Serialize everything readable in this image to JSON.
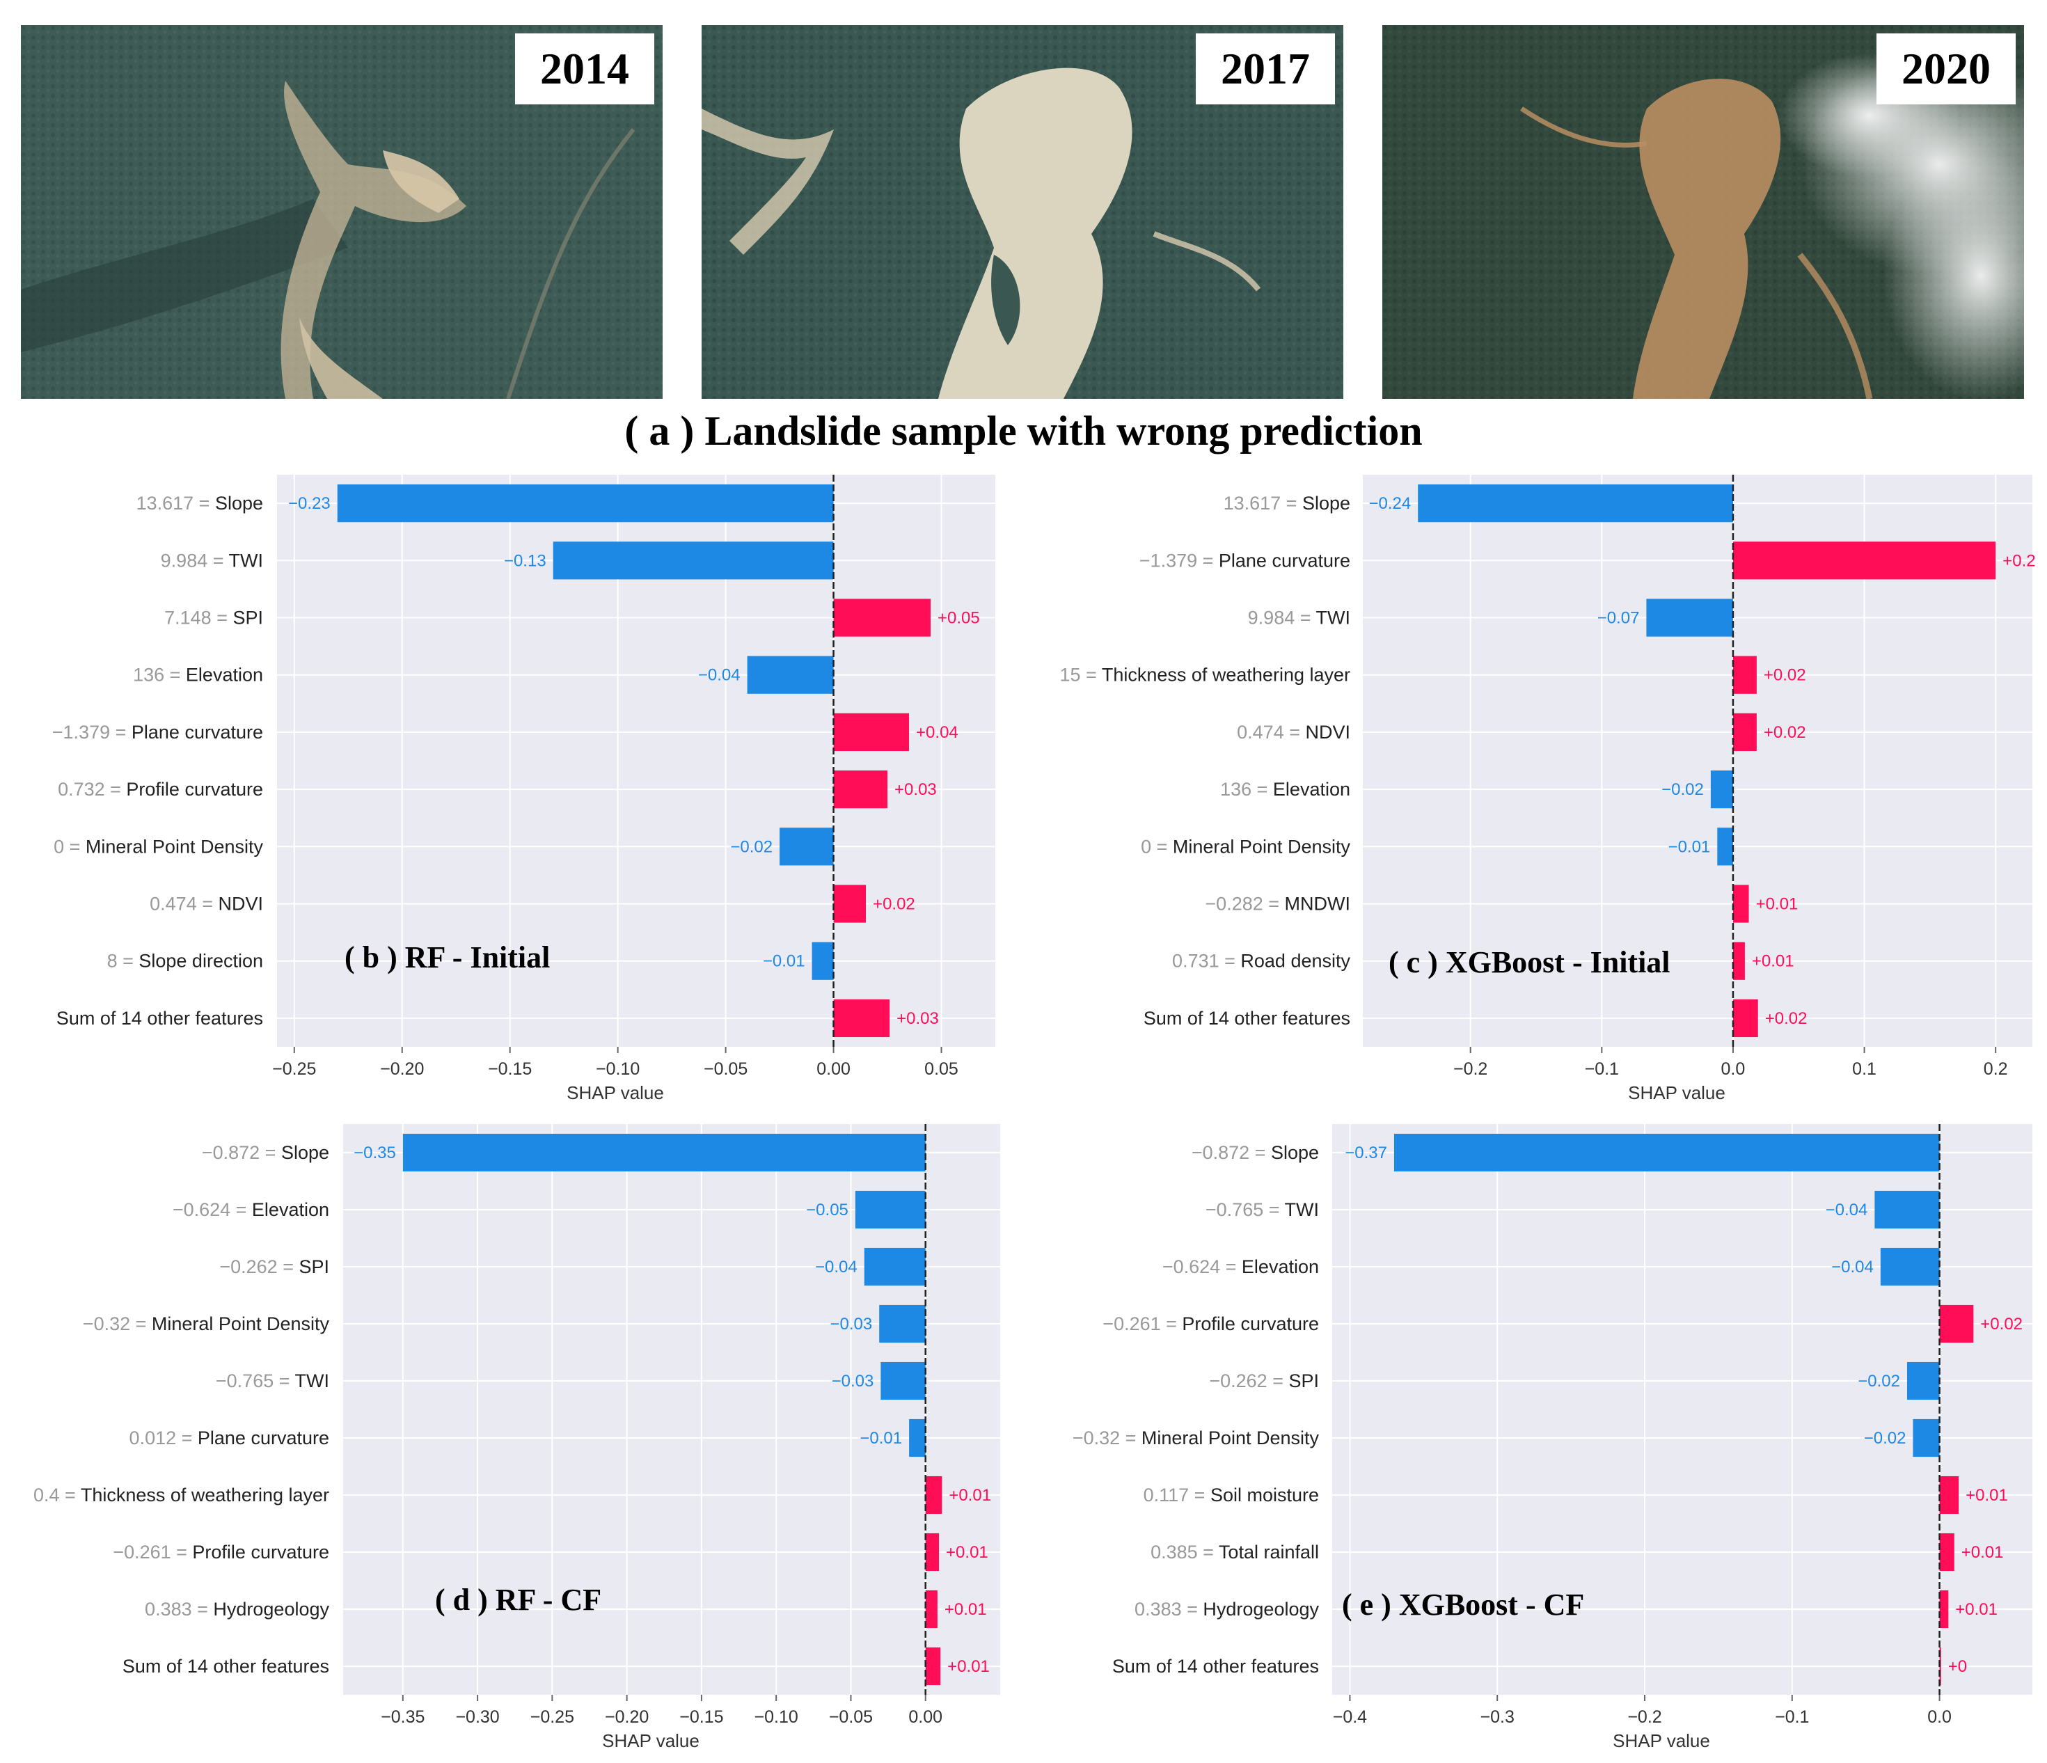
{
  "photos": {
    "years": [
      "2014",
      "2017",
      "2020"
    ],
    "caption": "( a ) Landslide sample with wrong prediction"
  },
  "colors": {
    "negative": "#1e88e5",
    "positive": "#ff0d57",
    "plot_bg": "#eaeaf2",
    "axis_text": "#333333",
    "value_gray": "#999999"
  },
  "chart_data": [
    {
      "id": "b",
      "type": "bar",
      "orientation": "horizontal",
      "title": "( b ) RF - Initial",
      "xlabel": "SHAP value",
      "xlim": [
        -0.258,
        0.075
      ],
      "xticks": [
        -0.25,
        -0.2,
        -0.15,
        -0.1,
        -0.05,
        0.0,
        0.05
      ],
      "tick_labels": [
        "−0.25",
        "−0.20",
        "−0.15",
        "−0.10",
        "−0.05",
        "0.00",
        "0.05"
      ],
      "features": [
        {
          "value": "13.617 =",
          "name": "Slope",
          "shap": -0.23,
          "label": "−0.23"
        },
        {
          "value": "9.984 =",
          "name": "TWI",
          "shap": -0.13,
          "label": "−0.13"
        },
        {
          "value": "7.148 =",
          "name": "SPI",
          "shap": 0.045,
          "label": "+0.05"
        },
        {
          "value": "136 =",
          "name": "Elevation",
          "shap": -0.04,
          "label": "−0.04"
        },
        {
          "value": "−1.379 =",
          "name": "Plane curvature",
          "shap": 0.035,
          "label": "+0.04"
        },
        {
          "value": "0.732 =",
          "name": "Profile curvature",
          "shap": 0.025,
          "label": "+0.03"
        },
        {
          "value": "0 =",
          "name": "Mineral Point Density",
          "shap": -0.025,
          "label": "−0.02"
        },
        {
          "value": "0.474 =",
          "name": "NDVI",
          "shap": 0.015,
          "label": "+0.02"
        },
        {
          "value": "8 =",
          "name": "Slope  direction",
          "shap": -0.01,
          "label": "−0.01"
        },
        {
          "value": "",
          "name": "Sum of 14 other features",
          "shap": 0.026,
          "label": "+0.03"
        }
      ]
    },
    {
      "id": "c",
      "type": "bar",
      "orientation": "horizontal",
      "title": "( c ) XGBoost - Initial",
      "xlabel": "SHAP value",
      "xlim": [
        -0.282,
        0.228
      ],
      "xticks": [
        -0.2,
        -0.1,
        0.0,
        0.1,
        0.2
      ],
      "tick_labels": [
        "−0.2",
        "−0.1",
        "0.0",
        "0.1",
        "0.2"
      ],
      "features": [
        {
          "value": "13.617 =",
          "name": "Slope",
          "shap": -0.24,
          "label": "−0.24"
        },
        {
          "value": "−1.379 =",
          "name": "Plane curvature",
          "shap": 0.2,
          "label": "+0.2"
        },
        {
          "value": "9.984 =",
          "name": "TWI",
          "shap": -0.066,
          "label": "−0.07"
        },
        {
          "value": "15 =",
          "name": "Thickness of weathering layer",
          "shap": 0.018,
          "label": "+0.02"
        },
        {
          "value": "0.474 =",
          "name": "NDVI",
          "shap": 0.018,
          "label": "+0.02"
        },
        {
          "value": "136 =",
          "name": "Elevation",
          "shap": -0.017,
          "label": "−0.02"
        },
        {
          "value": "0 =",
          "name": "Mineral Point Density",
          "shap": -0.012,
          "label": "−0.01"
        },
        {
          "value": "−0.282 =",
          "name": "MNDWI",
          "shap": 0.012,
          "label": "+0.01"
        },
        {
          "value": "0.731 =",
          "name": "Road density",
          "shap": 0.009,
          "label": "+0.01"
        },
        {
          "value": "",
          "name": "Sum of 14 other features",
          "shap": 0.019,
          "label": "+0.02"
        }
      ]
    },
    {
      "id": "d",
      "type": "bar",
      "orientation": "horizontal",
      "title": "( d ) RF - CF",
      "xlabel": "SHAP value",
      "xlim": [
        -0.39,
        0.05
      ],
      "xticks": [
        -0.35,
        -0.3,
        -0.25,
        -0.2,
        -0.15,
        -0.1,
        -0.05,
        0.0
      ],
      "tick_labels": [
        "−0.35",
        "−0.30",
        "−0.25",
        "−0.20",
        "−0.15",
        "−0.10",
        "−0.05",
        "0.00"
      ],
      "features": [
        {
          "value": "−0.872 =",
          "name": "Slope",
          "shap": -0.35,
          "label": "−0.35"
        },
        {
          "value": "−0.624 =",
          "name": "Elevation",
          "shap": -0.047,
          "label": "−0.05"
        },
        {
          "value": "−0.262 =",
          "name": "SPI",
          "shap": -0.041,
          "label": "−0.04"
        },
        {
          "value": "−0.32 =",
          "name": "Mineral Point Density",
          "shap": -0.031,
          "label": "−0.03"
        },
        {
          "value": "−0.765 =",
          "name": "TWI",
          "shap": -0.03,
          "label": "−0.03"
        },
        {
          "value": "0.012 =",
          "name": "Plane curvature",
          "shap": -0.011,
          "label": "−0.01"
        },
        {
          "value": "0.4 =",
          "name": "Thickness of weathering layer",
          "shap": 0.011,
          "label": "+0.01"
        },
        {
          "value": "−0.261 =",
          "name": "Profile curvature",
          "shap": 0.009,
          "label": "+0.01"
        },
        {
          "value": "0.383 =",
          "name": "Hydrogeology",
          "shap": 0.008,
          "label": "+0.01"
        },
        {
          "value": "",
          "name": "Sum of 14 other features",
          "shap": 0.01,
          "label": "+0.01"
        }
      ]
    },
    {
      "id": "e",
      "type": "bar",
      "orientation": "horizontal",
      "title": "( e ) XGBoost - CF",
      "xlabel": "SHAP value",
      "xlim": [
        -0.412,
        0.063
      ],
      "xticks": [
        -0.4,
        -0.3,
        -0.2,
        -0.1,
        0.0
      ],
      "tick_labels": [
        "−0.4",
        "−0.3",
        "−0.2",
        "−0.1",
        "0.0"
      ],
      "features": [
        {
          "value": "−0.872 =",
          "name": "Slope",
          "shap": -0.37,
          "label": "−0.37"
        },
        {
          "value": "−0.765 =",
          "name": "TWI",
          "shap": -0.044,
          "label": "−0.04"
        },
        {
          "value": "−0.624 =",
          "name": "Elevation",
          "shap": -0.04,
          "label": "−0.04"
        },
        {
          "value": "−0.261 =",
          "name": "Profile curvature",
          "shap": 0.023,
          "label": "+0.02"
        },
        {
          "value": "−0.262 =",
          "name": "SPI",
          "shap": -0.022,
          "label": "−0.02"
        },
        {
          "value": "−0.32 =",
          "name": "Mineral Point Density",
          "shap": -0.018,
          "label": "−0.02"
        },
        {
          "value": "0.117 =",
          "name": "Soil moisture",
          "shap": 0.013,
          "label": "+0.01"
        },
        {
          "value": "0.385 =",
          "name": "Total rainfall",
          "shap": 0.01,
          "label": "+0.01"
        },
        {
          "value": "0.383 =",
          "name": "Hydrogeology",
          "shap": 0.006,
          "label": "+0.01"
        },
        {
          "value": "",
          "name": "Sum of 14 other features",
          "shap": 0.001,
          "label": "+0"
        }
      ]
    }
  ]
}
